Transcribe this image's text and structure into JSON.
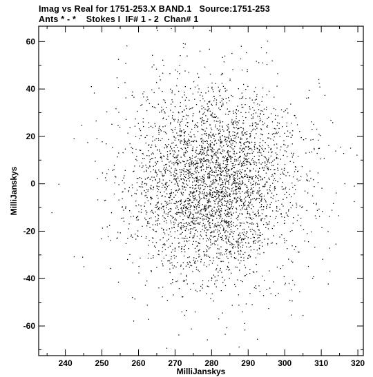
{
  "header": {
    "line1": "Imag vs Real for 1751-253.X BAND.1   Source:1751-253",
    "line2": "Ants * - *    Stokes I  IF# 1 - 2  Chan# 1"
  },
  "chart_data": {
    "type": "scatter",
    "title": "Imag vs Real for 1751-253.X BAND.1   Source:1751-253",
    "subtitle": "Ants * - *    Stokes I  IF# 1 - 2  Chan# 1",
    "xlabel": "MilliJanskys",
    "ylabel": "MilliJanskys",
    "xlim": [
      232.7,
      321.5
    ],
    "ylim": [
      -72.5,
      66.5
    ],
    "xticks": [
      240,
      250,
      260,
      270,
      280,
      290,
      300,
      310,
      320
    ],
    "yticks": [
      -60,
      -40,
      -20,
      0,
      20,
      40,
      60
    ],
    "xticklabels": [
      "240",
      "250",
      "260",
      "270",
      "280",
      "290",
      "300",
      "310",
      "320"
    ],
    "yticklabels": [
      "-60",
      "-40",
      "-20",
      "0",
      "20",
      "40",
      "60"
    ],
    "grid": false,
    "marker_color": "#000000",
    "distribution": {
      "center": [
        280.5,
        0.5
      ],
      "sigma_real": 11.5,
      "sigma_imag": 20.5,
      "n_points": 3600
    },
    "outliers": [
      [
        236.2,
        -12.0
      ],
      [
        238.1,
        0.0
      ],
      [
        242.3,
        -30.6
      ],
      [
        244.6,
        -30.8
      ],
      [
        247.8,
        38.5
      ],
      [
        248.3,
        26.7
      ],
      [
        246.0,
        17.6
      ],
      [
        254.4,
        52.7
      ],
      [
        263.7,
        54.4
      ],
      [
        271.3,
        54.3
      ],
      [
        279.4,
        64.8
      ],
      [
        288.0,
        58.2
      ],
      [
        289.4,
        55.5
      ],
      [
        295.2,
        60.4
      ],
      [
        313.0,
        26.0
      ],
      [
        318.9,
        -7.3
      ],
      [
        316.0,
        13.0
      ],
      [
        307.8,
        -39.0
      ],
      [
        292.4,
        -65.4
      ],
      [
        262.6,
        -57.0
      ],
      [
        270.9,
        -63.6
      ],
      [
        283.6,
        -63.3
      ],
      [
        287.4,
        -68.7
      ],
      [
        304.9,
        -55.3
      ],
      [
        252.2,
        -35.5
      ]
    ]
  }
}
